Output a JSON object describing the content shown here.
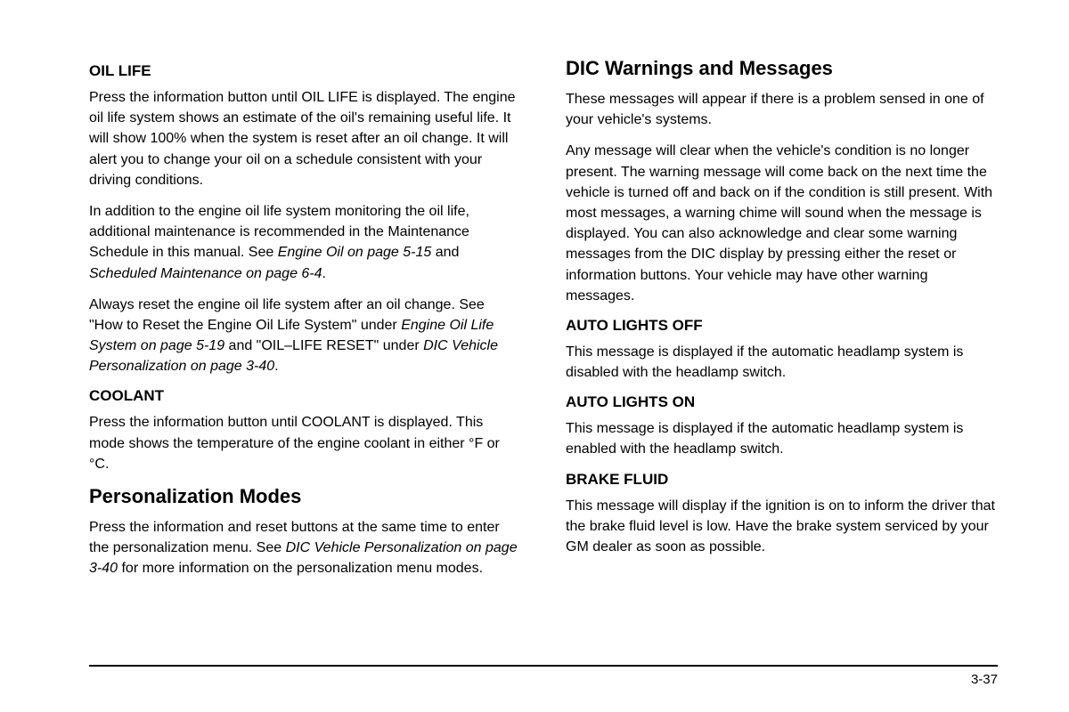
{
  "page_number": "3-37",
  "left": {
    "s1": {
      "heading": "OIL LIFE",
      "p1": "Press the information button until OIL LIFE is displayed. The engine oil life system shows an estimate of the oil's remaining useful life. It will show 100% when the system is reset after an oil change. It will alert you to change your oil on a schedule consistent with your driving conditions.",
      "p2a": "In addition to the engine oil life system monitoring the oil life, additional maintenance is recommended in the Maintenance Schedule in this manual. See ",
      "p2b": "Engine Oil on page 5-15",
      "p2c": " and ",
      "p2d": "Scheduled Maintenance on page 6-4",
      "p2e": ".",
      "p3a": "Always reset the engine oil life system after an oil change. See \"How to Reset the Engine Oil Life System\" under ",
      "p3b": "Engine Oil Life System on page 5-19",
      "p3c": " and \"OIL–LIFE RESET\" under ",
      "p3d": "DIC Vehicle Personalization on page 3-40",
      "p3e": "."
    },
    "s2": {
      "heading": "COOLANT",
      "p1": "Press the information button until COOLANT is displayed. This mode shows the temperature of the engine coolant in either °F or °C."
    },
    "s3": {
      "heading": "Personalization Modes",
      "p1a": "Press the information and reset buttons at the same time to enter the personalization menu. See ",
      "p1b": "DIC Vehicle Personalization on page 3-40",
      "p1c": " for more information on the personalization menu modes."
    }
  },
  "right": {
    "s1": {
      "heading": "DIC Warnings and Messages",
      "p1": "These messages will appear if there is a problem sensed in one of your vehicle's systems.",
      "p2": "Any message will clear when the vehicle's condition is no longer present. The warning message will come back on the next time the vehicle is turned off and back on if the condition is still present. With most messages, a warning chime will sound when the message is displayed. You can also acknowledge and clear some warning messages from the DIC display by pressing either the reset or information buttons. Your vehicle may have other warning messages."
    },
    "s2": {
      "heading": "AUTO LIGHTS OFF",
      "p1": "This message is displayed if the automatic headlamp system is disabled with the headlamp switch."
    },
    "s3": {
      "heading": "AUTO LIGHTS ON",
      "p1": "This message is displayed if the automatic headlamp system is enabled with the headlamp switch."
    },
    "s4": {
      "heading": "BRAKE FLUID",
      "p1": "This message will display if the ignition is on to inform the driver that the brake fluid level is low. Have the brake system serviced by your GM dealer as soon as possible."
    }
  }
}
